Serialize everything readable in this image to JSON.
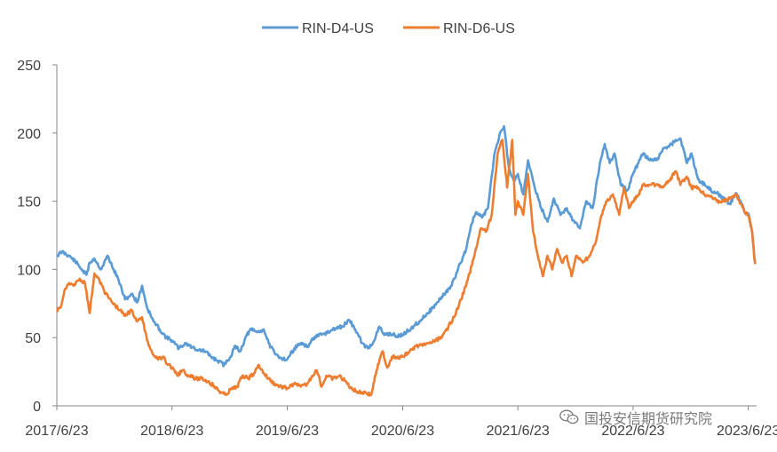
{
  "chart_data": {
    "type": "line",
    "title": "",
    "xlabel": "",
    "ylabel": "",
    "ylim": [
      0,
      250
    ],
    "yticks": [
      "0",
      "50",
      "100",
      "150",
      "200",
      "250"
    ],
    "xticks": [
      "2017/6/23",
      "2018/6/23",
      "2019/6/23",
      "2020/6/23",
      "2021/6/23",
      "2022/6/23",
      "2023/6/23"
    ],
    "legend_position": "top-center",
    "grid": false,
    "series": [
      {
        "name": "RIN-D4-US",
        "color": "#5B9BD5",
        "points": [
          [
            "2017/6/23",
            110
          ],
          [
            "2017/7/10",
            113
          ],
          [
            "2017/8/1",
            110
          ],
          [
            "2017/8/20",
            106
          ],
          [
            "2017/9/10",
            100
          ],
          [
            "2017/9/25",
            96
          ],
          [
            "2017/10/5",
            105
          ],
          [
            "2017/10/20",
            108
          ],
          [
            "2017/11/10",
            100
          ],
          [
            "2017/12/1",
            110
          ],
          [
            "2017/12/20",
            100
          ],
          [
            "2018/1/5",
            92
          ],
          [
            "2018/1/25",
            78
          ],
          [
            "2018/2/15",
            82
          ],
          [
            "2018/3/5",
            76
          ],
          [
            "2018/3/20",
            88
          ],
          [
            "2018/4/5",
            72
          ],
          [
            "2018/4/25",
            62
          ],
          [
            "2018/5/15",
            56
          ],
          [
            "2018/6/5",
            50
          ],
          [
            "2018/6/23",
            48
          ],
          [
            "2018/7/15",
            42
          ],
          [
            "2018/8/5",
            46
          ],
          [
            "2018/8/25",
            43
          ],
          [
            "2018/9/15",
            41
          ],
          [
            "2018/10/5",
            40
          ],
          [
            "2018/10/25",
            36
          ],
          [
            "2018/11/15",
            33
          ],
          [
            "2018/12/5",
            30
          ],
          [
            "2018/12/25",
            36
          ],
          [
            "2019/1/10",
            44
          ],
          [
            "2019/1/25",
            40
          ],
          [
            "2019/2/15",
            52
          ],
          [
            "2019/3/1",
            56
          ],
          [
            "2019/3/20",
            54
          ],
          [
            "2019/4/10",
            56
          ],
          [
            "2019/4/25",
            46
          ],
          [
            "2019/5/15",
            38
          ],
          [
            "2019/6/5",
            35
          ],
          [
            "2019/6/23",
            34
          ],
          [
            "2019/7/15",
            42
          ],
          [
            "2019/8/5",
            46
          ],
          [
            "2019/8/25",
            43
          ],
          [
            "2019/9/15",
            50
          ],
          [
            "2019/10/10",
            52
          ],
          [
            "2019/11/1",
            54
          ],
          [
            "2019/11/25",
            57
          ],
          [
            "2019/12/15",
            58
          ],
          [
            "2020/1/5",
            63
          ],
          [
            "2020/1/25",
            56
          ],
          [
            "2020/2/15",
            46
          ],
          [
            "2020/3/5",
            42
          ],
          [
            "2020/3/25",
            48
          ],
          [
            "2020/4/10",
            58
          ],
          [
            "2020/4/25",
            52
          ],
          [
            "2020/5/15",
            53
          ],
          [
            "2020/6/5",
            51
          ],
          [
            "2020/6/23",
            52
          ],
          [
            "2020/7/20",
            57
          ],
          [
            "2020/8/15",
            62
          ],
          [
            "2020/9/10",
            68
          ],
          [
            "2020/10/5",
            74
          ],
          [
            "2020/11/1",
            82
          ],
          [
            "2020/11/25",
            88
          ],
          [
            "2020/12/15",
            100
          ],
          [
            "2021/1/10",
            115
          ],
          [
            "2021/1/25",
            132
          ],
          [
            "2021/2/10",
            142
          ],
          [
            "2021/3/1",
            138
          ],
          [
            "2021/3/20",
            145
          ],
          [
            "2021/4/10",
            185
          ],
          [
            "2021/4/25",
            198
          ],
          [
            "2021/5/10",
            205
          ],
          [
            "2021/5/25",
            175
          ],
          [
            "2021/6/10",
            165
          ],
          [
            "2021/6/23",
            170
          ],
          [
            "2021/7/10",
            155
          ],
          [
            "2021/7/25",
            180
          ],
          [
            "2021/8/15",
            160
          ],
          [
            "2021/9/5",
            145
          ],
          [
            "2021/9/25",
            135
          ],
          [
            "2021/10/15",
            152
          ],
          [
            "2021/11/5",
            140
          ],
          [
            "2021/11/25",
            145
          ],
          [
            "2021/12/15",
            136
          ],
          [
            "2022/1/5",
            130
          ],
          [
            "2022/1/25",
            150
          ],
          [
            "2022/2/15",
            145
          ],
          [
            "2022/3/10",
            178
          ],
          [
            "2022/3/25",
            192
          ],
          [
            "2022/4/10",
            178
          ],
          [
            "2022/4/25",
            185
          ],
          [
            "2022/5/15",
            162
          ],
          [
            "2022/6/5",
            158
          ],
          [
            "2022/6/23",
            170
          ],
          [
            "2022/7/10",
            178
          ],
          [
            "2022/7/25",
            185
          ],
          [
            "2022/8/15",
            180
          ],
          [
            "2022/9/5",
            180
          ],
          [
            "2022/9/25",
            188
          ],
          [
            "2022/10/15",
            190
          ],
          [
            "2022/11/5",
            195
          ],
          [
            "2022/11/20",
            196
          ],
          [
            "2022/12/10",
            178
          ],
          [
            "2022/12/25",
            185
          ],
          [
            "2023/1/15",
            166
          ],
          [
            "2023/2/5",
            162
          ],
          [
            "2023/2/25",
            158
          ],
          [
            "2023/3/15",
            156
          ],
          [
            "2023/4/5",
            152
          ],
          [
            "2023/4/25",
            148
          ],
          [
            "2023/5/15",
            156
          ],
          [
            "2023/5/30",
            150
          ],
          [
            "2023/6/10",
            143
          ],
          [
            "2023/6/23",
            141
          ],
          [
            "2023/7/5",
            128
          ],
          [
            "2023/7/12",
            110
          ],
          [
            "2023/7/15",
            104
          ]
        ]
      },
      {
        "name": "RIN-D6-US",
        "color": "#ED7D31",
        "points": [
          [
            "2017/6/23",
            70
          ],
          [
            "2017/7/5",
            72
          ],
          [
            "2017/7/20",
            86
          ],
          [
            "2017/8/1",
            90
          ],
          [
            "2017/8/15",
            88
          ],
          [
            "2017/9/1",
            92
          ],
          [
            "2017/9/20",
            90
          ],
          [
            "2017/10/5",
            68
          ],
          [
            "2017/10/20",
            97
          ],
          [
            "2017/11/5",
            92
          ],
          [
            "2017/11/25",
            82
          ],
          [
            "2017/12/15",
            76
          ],
          [
            "2018/1/10",
            70
          ],
          [
            "2018/1/25",
            66
          ],
          [
            "2018/2/15",
            70
          ],
          [
            "2018/3/5",
            62
          ],
          [
            "2018/3/20",
            65
          ],
          [
            "2018/4/5",
            48
          ],
          [
            "2018/4/20",
            40
          ],
          [
            "2018/5/10",
            34
          ],
          [
            "2018/5/25",
            36
          ],
          [
            "2018/6/10",
            30
          ],
          [
            "2018/6/23",
            28
          ],
          [
            "2018/7/10",
            22
          ],
          [
            "2018/7/25",
            26
          ],
          [
            "2018/8/15",
            22
          ],
          [
            "2018/9/5",
            20
          ],
          [
            "2018/9/25",
            20
          ],
          [
            "2018/10/15",
            18
          ],
          [
            "2018/11/5",
            14
          ],
          [
            "2018/11/25",
            10
          ],
          [
            "2018/12/10",
            8
          ],
          [
            "2018/12/25",
            12
          ],
          [
            "2019/1/15",
            14
          ],
          [
            "2019/2/1",
            22
          ],
          [
            "2019/2/20",
            20
          ],
          [
            "2019/3/10",
            24
          ],
          [
            "2019/3/25",
            30
          ],
          [
            "2019/4/10",
            24
          ],
          [
            "2019/4/25",
            20
          ],
          [
            "2019/5/15",
            16
          ],
          [
            "2019/6/5",
            14
          ],
          [
            "2019/6/23",
            13
          ],
          [
            "2019/7/15",
            16
          ],
          [
            "2019/8/5",
            14
          ],
          [
            "2019/8/25",
            16
          ],
          [
            "2019/9/10",
            22
          ],
          [
            "2019/9/25",
            26
          ],
          [
            "2019/10/10",
            14
          ],
          [
            "2019/10/25",
            22
          ],
          [
            "2019/11/15",
            20
          ],
          [
            "2019/12/5",
            22
          ],
          [
            "2019/12/25",
            18
          ],
          [
            "2020/1/15",
            12
          ],
          [
            "2020/2/5",
            10
          ],
          [
            "2020/2/25",
            10
          ],
          [
            "2020/3/15",
            8
          ],
          [
            "2020/4/1",
            26
          ],
          [
            "2020/4/20",
            40
          ],
          [
            "2020/5/5",
            28
          ],
          [
            "2020/5/20",
            36
          ],
          [
            "2020/6/5",
            35
          ],
          [
            "2020/6/23",
            36
          ],
          [
            "2020/7/15",
            40
          ],
          [
            "2020/8/5",
            44
          ],
          [
            "2020/8/25",
            44
          ],
          [
            "2020/9/15",
            46
          ],
          [
            "2020/10/5",
            48
          ],
          [
            "2020/10/25",
            50
          ],
          [
            "2020/11/15",
            58
          ],
          [
            "2020/12/5",
            66
          ],
          [
            "2020/12/25",
            78
          ],
          [
            "2021/1/15",
            92
          ],
          [
            "2021/2/5",
            110
          ],
          [
            "2021/2/25",
            130
          ],
          [
            "2021/3/15",
            128
          ],
          [
            "2021/4/1",
            140
          ],
          [
            "2021/4/20",
            185
          ],
          [
            "2021/5/5",
            195
          ],
          [
            "2021/5/20",
            160
          ],
          [
            "2021/6/5",
            195
          ],
          [
            "2021/6/15",
            140
          ],
          [
            "2021/6/23",
            150
          ],
          [
            "2021/7/10",
            140
          ],
          [
            "2021/7/25",
            170
          ],
          [
            "2021/8/10",
            128
          ],
          [
            "2021/8/25",
            110
          ],
          [
            "2021/9/10",
            95
          ],
          [
            "2021/9/25",
            110
          ],
          [
            "2021/10/10",
            100
          ],
          [
            "2021/10/25",
            115
          ],
          [
            "2021/11/10",
            105
          ],
          [
            "2021/11/25",
            110
          ],
          [
            "2021/12/10",
            95
          ],
          [
            "2021/12/25",
            110
          ],
          [
            "2022/1/15",
            105
          ],
          [
            "2022/2/5",
            110
          ],
          [
            "2022/2/25",
            120
          ],
          [
            "2022/3/15",
            140
          ],
          [
            "2022/4/1",
            150
          ],
          [
            "2022/4/20",
            155
          ],
          [
            "2022/5/10",
            140
          ],
          [
            "2022/5/25",
            160
          ],
          [
            "2022/6/10",
            145
          ],
          [
            "2022/6/23",
            150
          ],
          [
            "2022/7/10",
            155
          ],
          [
            "2022/7/25",
            162
          ],
          [
            "2022/8/15",
            162
          ],
          [
            "2022/9/5",
            162
          ],
          [
            "2022/9/25",
            160
          ],
          [
            "2022/10/15",
            165
          ],
          [
            "2022/11/5",
            172
          ],
          [
            "2022/11/20",
            162
          ],
          [
            "2022/12/10",
            168
          ],
          [
            "2022/12/25",
            160
          ],
          [
            "2023/1/15",
            160
          ],
          [
            "2023/2/5",
            155
          ],
          [
            "2023/2/25",
            154
          ],
          [
            "2023/3/15",
            150
          ],
          [
            "2023/4/5",
            150
          ],
          [
            "2023/4/25",
            152
          ],
          [
            "2023/5/15",
            155
          ],
          [
            "2023/5/30",
            148
          ],
          [
            "2023/6/10",
            143
          ],
          [
            "2023/6/23",
            140
          ],
          [
            "2023/7/5",
            128
          ],
          [
            "2023/7/12",
            108
          ],
          [
            "2023/7/15",
            104
          ]
        ]
      }
    ]
  },
  "watermark": {
    "text": "国投安信期货研究院",
    "icon": "wechat-icon"
  }
}
